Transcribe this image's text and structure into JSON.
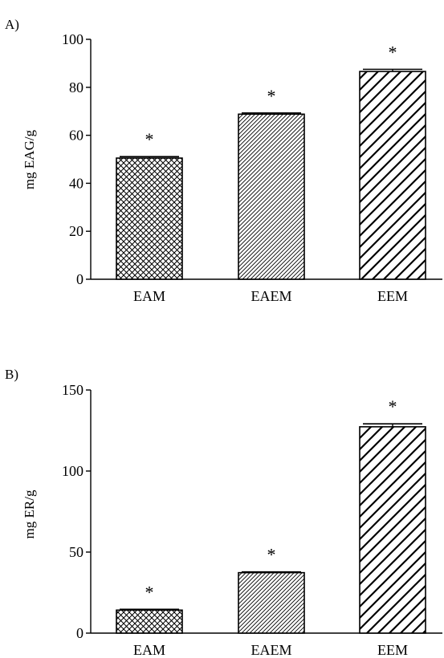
{
  "chart_data": [
    {
      "type": "bar",
      "panel_label": "A)",
      "categories": [
        "EAM",
        "EAEM",
        "EEM"
      ],
      "values": [
        50.5,
        68.8,
        86.6
      ],
      "errors": [
        0.6,
        0.5,
        0.9
      ],
      "annotations": [
        "*",
        "*",
        "*"
      ],
      "ylabel": "mg EAG/g",
      "xlabel": "",
      "ylim": [
        0,
        100
      ],
      "yticks": [
        0,
        20,
        40,
        60,
        80,
        100
      ],
      "patterns": [
        "crosshatch",
        "fine-diagonal",
        "wide-diagonal"
      ],
      "grid": false,
      "legend": "none"
    },
    {
      "type": "bar",
      "panel_label": "B)",
      "categories": [
        "EAM",
        "EAEM",
        "EEM"
      ],
      "values": [
        14.2,
        37.3,
        127.3
      ],
      "errors": [
        0.5,
        0.5,
        1.8
      ],
      "annotations": [
        "*",
        "*",
        "*"
      ],
      "ylabel": "mg ER/g",
      "xlabel": "",
      "ylim": [
        0,
        150
      ],
      "yticks": [
        0,
        50,
        100,
        150
      ],
      "patterns": [
        "crosshatch",
        "fine-diagonal",
        "wide-diagonal"
      ],
      "grid": false,
      "legend": "none"
    }
  ],
  "colors": {
    "ink": "#000000",
    "background": "#ffffff"
  }
}
